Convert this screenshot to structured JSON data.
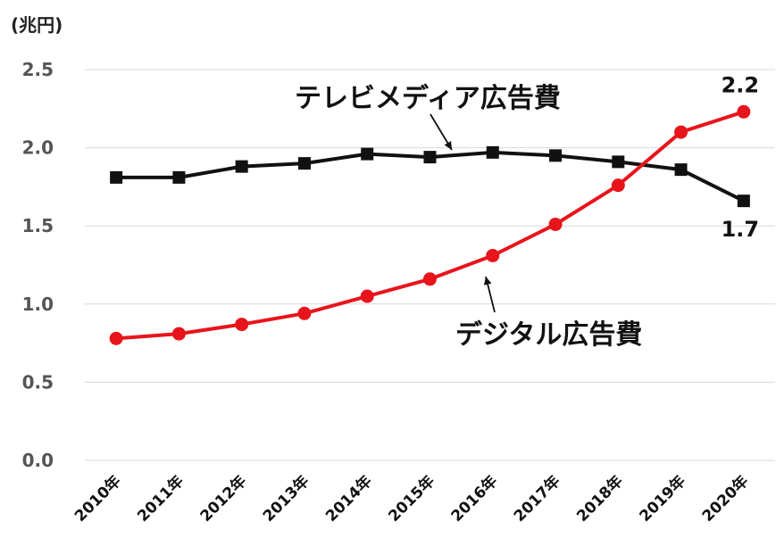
{
  "chart_data": {
    "type": "line",
    "unit_label": "(兆円)",
    "categories": [
      "2010年",
      "2011年",
      "2012年",
      "2013年",
      "2014年",
      "2015年",
      "2016年",
      "2017年",
      "2018年",
      "2019年",
      "2020年"
    ],
    "ylim": [
      0,
      2.5
    ],
    "yticks": [
      "0.0",
      "0.5",
      "1.0",
      "1.5",
      "2.0",
      "2.5"
    ],
    "grid": true,
    "series": [
      {
        "name": "テレビメディア広告費",
        "color": "#111111",
        "marker": "square",
        "values": [
          1.81,
          1.81,
          1.88,
          1.9,
          1.96,
          1.94,
          1.97,
          1.95,
          1.91,
          1.86,
          1.66
        ]
      },
      {
        "name": "デジタル広告費",
        "color": "#e8141b",
        "marker": "circle",
        "values": [
          0.78,
          0.81,
          0.87,
          0.94,
          1.05,
          1.16,
          1.31,
          1.51,
          1.76,
          2.1,
          2.23
        ]
      }
    ],
    "annotations": [
      {
        "text": "2.2",
        "series": 1,
        "index": 10
      },
      {
        "text": "1.7",
        "series": 0,
        "index": 10
      }
    ]
  }
}
